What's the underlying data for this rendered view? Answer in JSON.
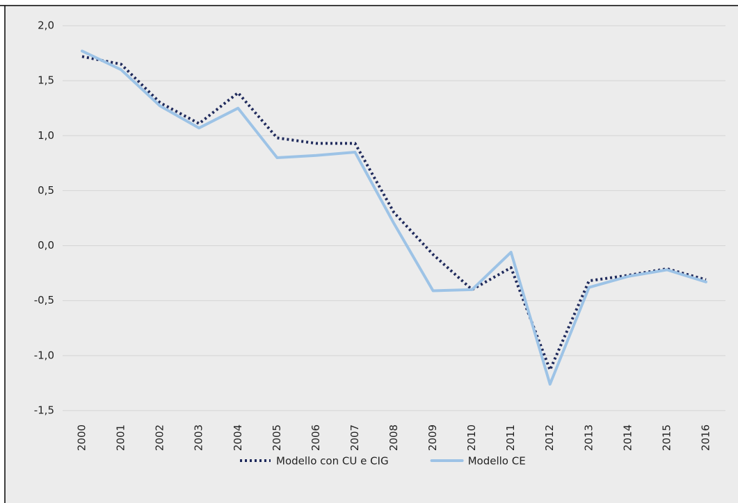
{
  "chart_data": {
    "type": "line",
    "categories": [
      "2000",
      "2001",
      "2002",
      "2003",
      "2004",
      "2005",
      "2006",
      "2007",
      "2008",
      "2009",
      "2010",
      "2011",
      "2012",
      "2013",
      "2014",
      "2015",
      "2016"
    ],
    "series": [
      {
        "name": "Modello con CU e CIG",
        "color": "#1f2a5c",
        "dash": "dotted",
        "values": [
          1.72,
          1.65,
          1.3,
          1.11,
          1.39,
          0.98,
          0.93,
          0.93,
          0.3,
          -0.08,
          -0.4,
          -0.2,
          -1.13,
          -0.32,
          -0.27,
          -0.21,
          -0.31
        ]
      },
      {
        "name": "Modello CE",
        "color": "#9dc3e6",
        "dash": "solid",
        "values": [
          1.77,
          1.6,
          1.27,
          1.07,
          1.25,
          0.8,
          0.82,
          0.85,
          0.2,
          -0.41,
          -0.4,
          -0.06,
          -1.26,
          -0.38,
          -0.28,
          -0.22,
          -0.33
        ]
      }
    ],
    "ylim": [
      -1.5,
      2.0
    ],
    "yticks": [
      {
        "value": -1.5,
        "label": "-1,5"
      },
      {
        "value": -1.0,
        "label": "-1,0"
      },
      {
        "value": -0.5,
        "label": "-0,5"
      },
      {
        "value": 0,
        "label": "0,0"
      },
      {
        "value": 0.5,
        "label": "0,5"
      },
      {
        "value": 1.0,
        "label": "1,0"
      },
      {
        "value": 1.5,
        "label": "1,5"
      },
      {
        "value": 2.0,
        "label": "2,0"
      }
    ],
    "grid": true
  }
}
